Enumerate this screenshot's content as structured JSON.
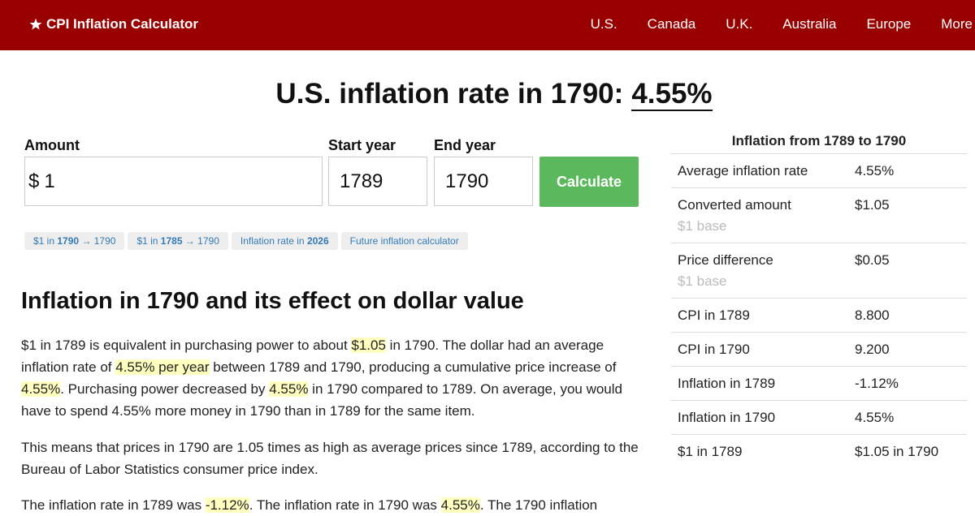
{
  "nav": {
    "brand": "CPI Inflation Calculator",
    "links": [
      "U.S.",
      "Canada",
      "U.K.",
      "Australia",
      "Europe",
      "More"
    ]
  },
  "headline": {
    "text": "U.S. inflation rate in 1790:",
    "rate": "4.55%"
  },
  "form": {
    "fields": [
      {
        "label": "Amount",
        "prefix": "$",
        "value": "1"
      },
      {
        "label": "Start year",
        "value": "1789"
      },
      {
        "label": "End year",
        "value": "1790"
      }
    ],
    "button": "Calculate"
  },
  "chips": [
    [
      "$1 in ",
      "1790",
      " → 1790"
    ],
    [
      "$1 in ",
      "1785",
      " → 1790"
    ],
    [
      "Inflation rate in ",
      "2026"
    ],
    [
      "Future inflation calculator"
    ]
  ],
  "article": {
    "heading": "Inflation in 1790 and its effect on dollar value",
    "paragraphs": [
      [
        "$1 in 1789 is equivalent in purchasing power to about ",
        "$1.05",
        " in 1790. The dollar had an average inflation rate of ",
        "4.55% per year",
        " between 1789 and 1790, producing a cumulative price increase of ",
        "4.55%",
        ". Purchasing power decreased by ",
        "4.55%",
        " in 1790 compared to 1789. On average, you would have to spend 4.55% more money in 1790 than in 1789 for the same item."
      ],
      [
        "This means that prices in 1790 are 1.05 times as high as average prices since 1789, according to the Bureau of Labor Statistics consumer price index."
      ],
      [
        "The inflation rate in 1789 was ",
        "-1.12%",
        ". The inflation rate in 1790 was ",
        "4.55%",
        ". The 1790 inflation"
      ]
    ]
  },
  "sidebar": {
    "title": "Inflation from 1789 to 1790",
    "rows": [
      {
        "label": "Average inflation rate",
        "value": "4.55%"
      },
      {
        "label": "Converted amount",
        "value": "$1.05",
        "note": "$1 base"
      },
      {
        "label": "Price difference",
        "value": "$0.05",
        "note": "$1 base"
      },
      {
        "label": "CPI in 1789",
        "value": "8.800"
      },
      {
        "label": "CPI in 1790",
        "value": "9.200"
      },
      {
        "label": "Inflation in 1789",
        "value": "-1.12%"
      },
      {
        "label": "Inflation in 1790",
        "value": "4.55%"
      },
      {
        "label": "$1 in 1789",
        "value": "$1.05 in 1790"
      }
    ]
  }
}
